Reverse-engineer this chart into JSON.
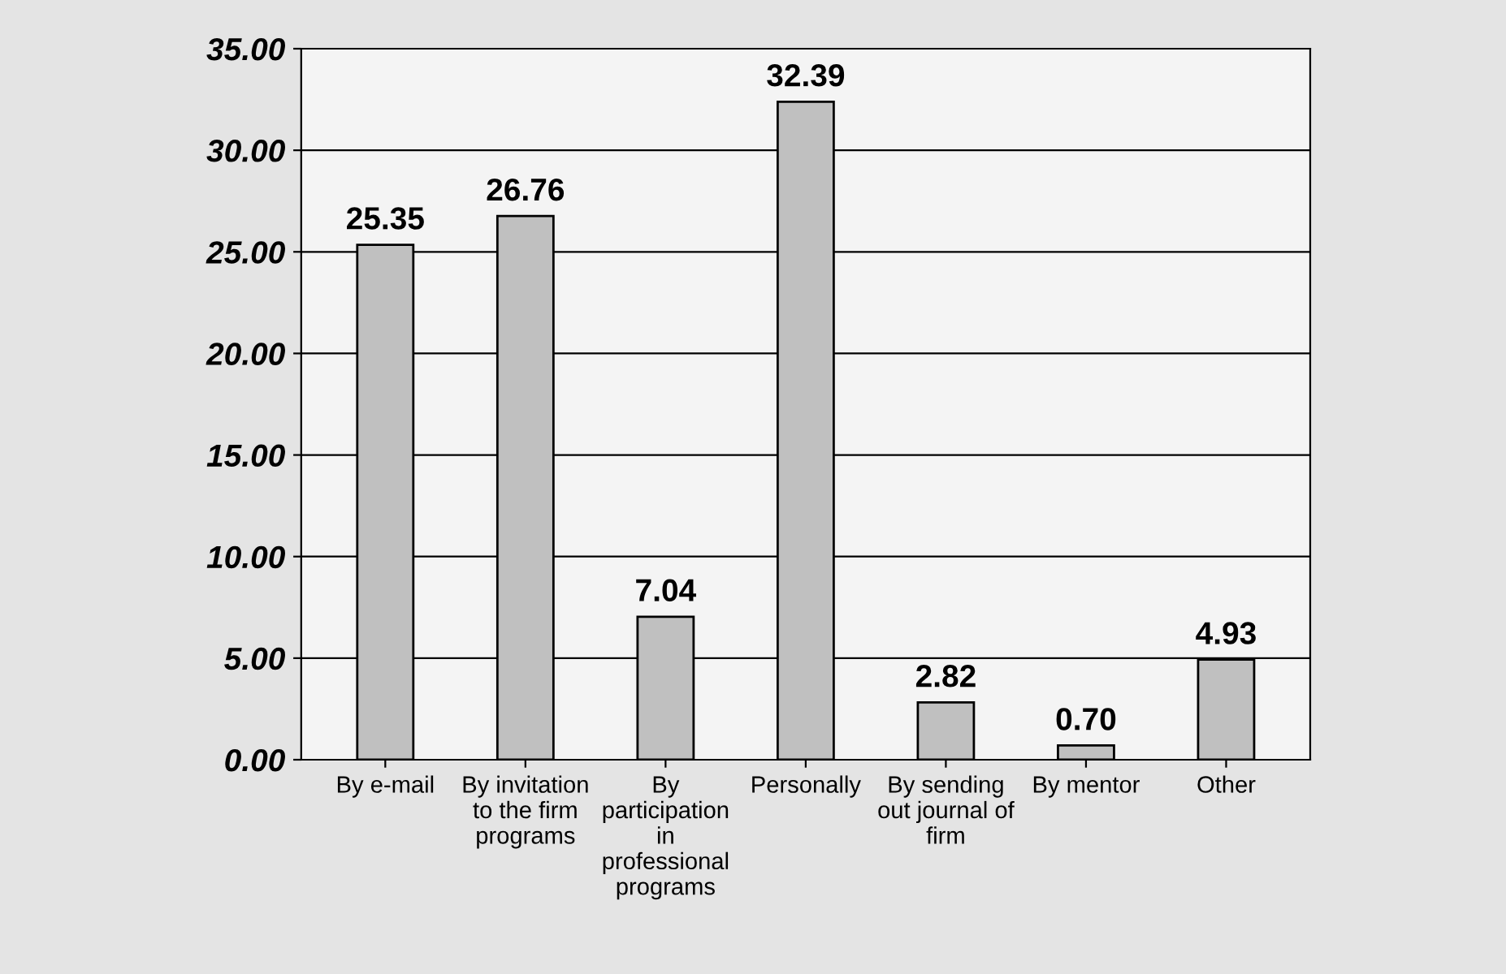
{
  "chart_data": {
    "type": "bar",
    "categories": [
      "By e-mail",
      "By invitation\nto the firm\nprograms",
      "By\nparticipation\nin\nprofessional\nprograms",
      "Personally",
      "By sending\nout journal of\nfirm",
      "By mentor",
      "Other"
    ],
    "values": [
      25.35,
      26.76,
      7.04,
      32.39,
      2.82,
      0.7,
      4.93
    ],
    "value_labels": [
      "25.35",
      "26.76",
      "7.04",
      "32.39",
      "2.82",
      "0.70",
      "4.93"
    ],
    "color": "#c0c0c0",
    "ylim": [
      0,
      35
    ],
    "yticks": [
      {
        "value": 0,
        "label": "0.00"
      },
      {
        "value": 5,
        "label": "5.00"
      },
      {
        "value": 10,
        "label": "10.00"
      },
      {
        "value": 15,
        "label": "15.00"
      },
      {
        "value": 20,
        "label": "20.00"
      },
      {
        "value": 25,
        "label": "25.00"
      },
      {
        "value": 30,
        "label": "30.00"
      },
      {
        "value": 35,
        "label": "35.00"
      }
    ],
    "grid": "y"
  }
}
